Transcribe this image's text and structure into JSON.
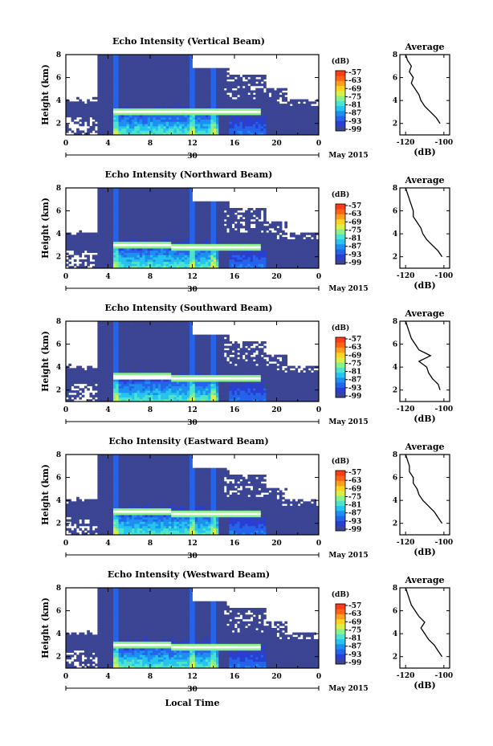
{
  "chart_data": {
    "type": "heatmap",
    "panels": [
      {
        "title": "Echo Intensity (Vertical Beam)",
        "average_title": "Average",
        "avg_values": [
          -102,
          -104,
          -107,
          -110,
          -112,
          -113,
          -115,
          -117,
          -116,
          -118,
          -117,
          -119,
          -120
        ]
      },
      {
        "title": "Echo Intensity (Northward Beam)",
        "average_title": "Average",
        "avg_values": [
          -101,
          -103,
          -106,
          -109,
          -111,
          -112,
          -114,
          -116,
          -116,
          -117,
          -118,
          -119,
          -120
        ]
      },
      {
        "title": "Echo Intensity (Southward Beam)",
        "average_title": "Average",
        "avg_values": [
          -102,
          -103,
          -106,
          -108,
          -109,
          -113,
          -107,
          -113,
          -115,
          -117,
          -118,
          -119,
          -120
        ]
      },
      {
        "title": "Echo Intensity (Eastward Beam)",
        "average_title": "Average",
        "avg_values": [
          -101,
          -103,
          -105,
          -108,
          -111,
          -113,
          -114,
          -116,
          -116,
          -118,
          -118,
          -119,
          -120
        ]
      },
      {
        "title": "Echo Intensity (Westward Beam)",
        "average_title": "Average",
        "avg_values": [
          -101,
          -103,
          -105,
          -108,
          -110,
          -112,
          -110,
          -113,
          -115,
          -117,
          -118,
          -119,
          -120
        ]
      }
    ],
    "avg_heights_km": [
      2,
      2.5,
      3,
      3.5,
      4,
      4.5,
      5,
      5.5,
      6,
      6.5,
      7,
      7.5,
      8
    ],
    "ylabel": "Height (km)",
    "yticks": [
      "2",
      "4",
      "6",
      "8"
    ],
    "ylim": [
      1,
      8
    ],
    "xticks": [
      "0",
      "4",
      "8",
      "12",
      "16",
      "20",
      "0"
    ],
    "xlim": [
      0,
      24
    ],
    "date_label": "30",
    "month_label": "May 2015",
    "xlabel": "Local Time",
    "colorbar_unit": "(dB)",
    "colorbar_ticks": [
      "-57",
      "-63",
      "-69",
      "-75",
      "-81",
      "-87",
      "-93",
      "-99"
    ],
    "avg_xticks": [
      "-120",
      "-100"
    ],
    "avg_xlabel": "(dB)",
    "avg_xlim": [
      -123,
      -97
    ]
  }
}
